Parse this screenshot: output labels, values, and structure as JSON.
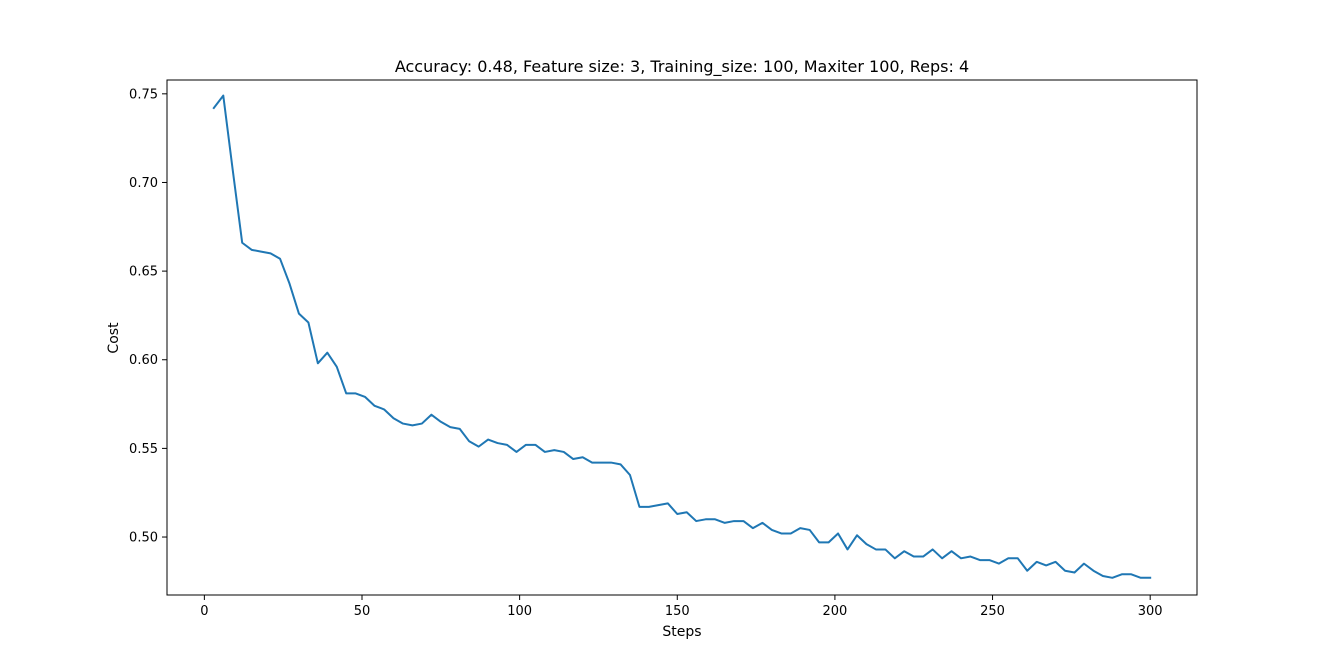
{
  "chart_data": {
    "type": "line",
    "title": "Accuracy: 0.48, Feature size: 3, Training_size: 100, Maxiter 100, Reps: 4",
    "xlabel": "Steps",
    "ylabel": "Cost",
    "xlim": [
      -11.85,
      314.85
    ],
    "ylim": [
      0.4673,
      0.7578
    ],
    "xticks": [
      0,
      50,
      100,
      150,
      200,
      250,
      300
    ],
    "xtick_labels": [
      "0",
      "50",
      "100",
      "150",
      "200",
      "250",
      "300"
    ],
    "yticks": [
      0.5,
      0.55,
      0.6,
      0.65,
      0.7,
      0.75
    ],
    "ytick_labels": [
      "0.50",
      "0.55",
      "0.60",
      "0.65",
      "0.70",
      "0.75"
    ],
    "grid": false,
    "legend": false,
    "series": [
      {
        "color": "#1f77b4",
        "x": [
          3,
          6,
          9,
          12,
          15,
          18,
          21,
          24,
          27,
          30,
          33,
          36,
          39,
          42,
          45,
          48,
          51,
          54,
          57,
          60,
          63,
          66,
          69,
          72,
          75,
          78,
          81,
          84,
          87,
          90,
          93,
          96,
          99,
          102,
          105,
          108,
          111,
          114,
          117,
          120,
          123,
          126,
          129,
          132,
          135,
          138,
          141,
          144,
          147,
          150,
          153,
          156,
          159,
          162,
          165,
          168,
          171,
          174,
          177,
          180,
          183,
          186,
          189,
          192,
          195,
          198,
          201,
          204,
          207,
          210,
          213,
          216,
          219,
          222,
          225,
          228,
          231,
          234,
          237,
          240,
          243,
          246,
          249,
          252,
          255,
          258,
          261,
          264,
          267,
          270,
          273,
          276,
          279,
          282,
          285,
          288,
          291,
          294,
          297,
          300
        ],
        "y": [
          0.742,
          0.749,
          0.707,
          0.666,
          0.662,
          0.661,
          0.66,
          0.657,
          0.643,
          0.626,
          0.621,
          0.598,
          0.604,
          0.596,
          0.581,
          0.581,
          0.579,
          0.574,
          0.572,
          0.567,
          0.564,
          0.563,
          0.564,
          0.569,
          0.565,
          0.562,
          0.561,
          0.554,
          0.551,
          0.555,
          0.553,
          0.552,
          0.548,
          0.552,
          0.552,
          0.548,
          0.549,
          0.548,
          0.544,
          0.545,
          0.542,
          0.542,
          0.542,
          0.541,
          0.535,
          0.517,
          0.517,
          0.518,
          0.519,
          0.513,
          0.514,
          0.509,
          0.51,
          0.51,
          0.508,
          0.509,
          0.509,
          0.505,
          0.508,
          0.504,
          0.502,
          0.502,
          0.505,
          0.504,
          0.497,
          0.497,
          0.502,
          0.493,
          0.501,
          0.496,
          0.493,
          0.493,
          0.488,
          0.492,
          0.489,
          0.489,
          0.493,
          0.488,
          0.492,
          0.488,
          0.489,
          0.487,
          0.487,
          0.485,
          0.488,
          0.488,
          0.481,
          0.486,
          0.484,
          0.486,
          0.481,
          0.48,
          0.485,
          0.481,
          0.478,
          0.477,
          0.479,
          0.479,
          0.477,
          0.477
        ]
      }
    ]
  }
}
